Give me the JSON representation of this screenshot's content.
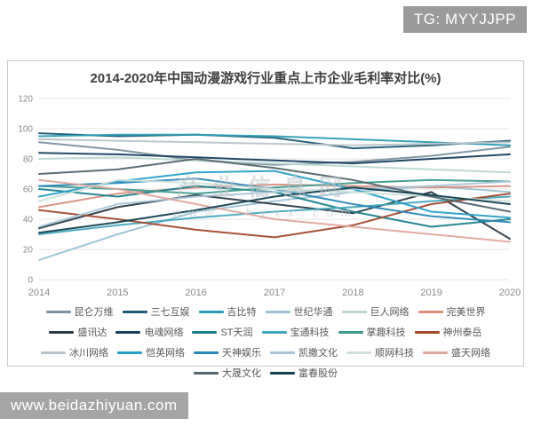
{
  "badges": {
    "top_right": "TG: MYYJJPP",
    "bottom_left": "www.beidazhiyuan.com"
  },
  "watermark": {
    "line1": "产业信息网",
    "line2": "www.chyxx.com"
  },
  "chart_data": {
    "type": "line",
    "title": "2014-2020年中国动漫游戏行业重点上市企业毛利率对比(%)",
    "x": [
      "2014",
      "2015",
      "2016",
      "2017",
      "2018",
      "2019",
      "2020"
    ],
    "ylim": [
      0,
      120
    ],
    "yticks": [
      0,
      20,
      40,
      60,
      80,
      100,
      120
    ],
    "grid": true,
    "legend_position": "bottom",
    "axis_label_color": "#8c8c8c",
    "gridline_color": "#e4e4e4",
    "series": [
      {
        "name": "昆仑万维",
        "color": "#7d929e",
        "values": [
          91,
          86,
          79,
          76,
          78,
          82,
          88
        ]
      },
      {
        "name": "三七互娱",
        "color": "#1f5b73",
        "values": [
          97,
          95,
          96,
          94,
          87,
          89,
          92
        ]
      },
      {
        "name": "吉比特",
        "color": "#2e9db5",
        "values": [
          95,
          96,
          96,
          95,
          93,
          91,
          89
        ]
      },
      {
        "name": "世纪华通",
        "color": "#9dc3d4",
        "values": [
          13,
          30,
          45,
          52,
          58,
          62,
          58
        ]
      },
      {
        "name": "巨人网络",
        "color": "#bcd8d2",
        "values": [
          80,
          81,
          79,
          77,
          75,
          73,
          71
        ]
      },
      {
        "name": "完美世界",
        "color": "#d8907f",
        "values": [
          48,
          57,
          61,
          63,
          62,
          61,
          62
        ]
      },
      {
        "name": "盛讯达",
        "color": "#2b3b44",
        "values": [
          34,
          48,
          56,
          50,
          44,
          58,
          27
        ]
      },
      {
        "name": "电魂网络",
        "color": "#173f5f",
        "values": [
          84,
          83,
          81,
          79,
          77,
          80,
          83
        ]
      },
      {
        "name": "ST天润",
        "color": "#1e7f8c",
        "values": [
          60,
          55,
          62,
          58,
          45,
          35,
          40
        ]
      },
      {
        "name": "宝通科技",
        "color": "#45a6bd",
        "values": [
          30,
          36,
          41,
          45,
          48,
          52,
          55
        ]
      },
      {
        "name": "掌趣科技",
        "color": "#3f9a8d",
        "values": [
          62,
          60,
          57,
          61,
          64,
          66,
          65
        ]
      },
      {
        "name": "神州泰岳",
        "color": "#a04a2e",
        "values": [
          46,
          40,
          33,
          28,
          36,
          50,
          57
        ]
      },
      {
        "name": "冰川网络",
        "color": "#b9c4c9",
        "values": [
          93,
          92,
          91,
          90,
          89,
          90,
          91
        ]
      },
      {
        "name": "恺英网络",
        "color": "#29a0c8",
        "values": [
          55,
          65,
          71,
          72,
          60,
          45,
          41
        ]
      },
      {
        "name": "天神娱乐",
        "color": "#2d89b8",
        "values": [
          62,
          64,
          67,
          60,
          50,
          42,
          38
        ]
      },
      {
        "name": "凯撒文化",
        "color": "#a9c6d8",
        "values": [
          35,
          50,
          55,
          58,
          60,
          62,
          65
        ]
      },
      {
        "name": "顺网科技",
        "color": "#cfe0da",
        "values": [
          52,
          66,
          64,
          60,
          58,
          55,
          52
        ]
      },
      {
        "name": "盛天网络",
        "color": "#dfa89e",
        "values": [
          66,
          60,
          50,
          40,
          35,
          30,
          25
        ]
      },
      {
        "name": "大晟文化",
        "color": "#55666e",
        "values": [
          70,
          73,
          80,
          74,
          66,
          55,
          45
        ]
      },
      {
        "name": "富春股份",
        "color": "#12404e",
        "values": [
          31,
          38,
          46,
          55,
          61,
          56,
          50
        ]
      }
    ]
  }
}
